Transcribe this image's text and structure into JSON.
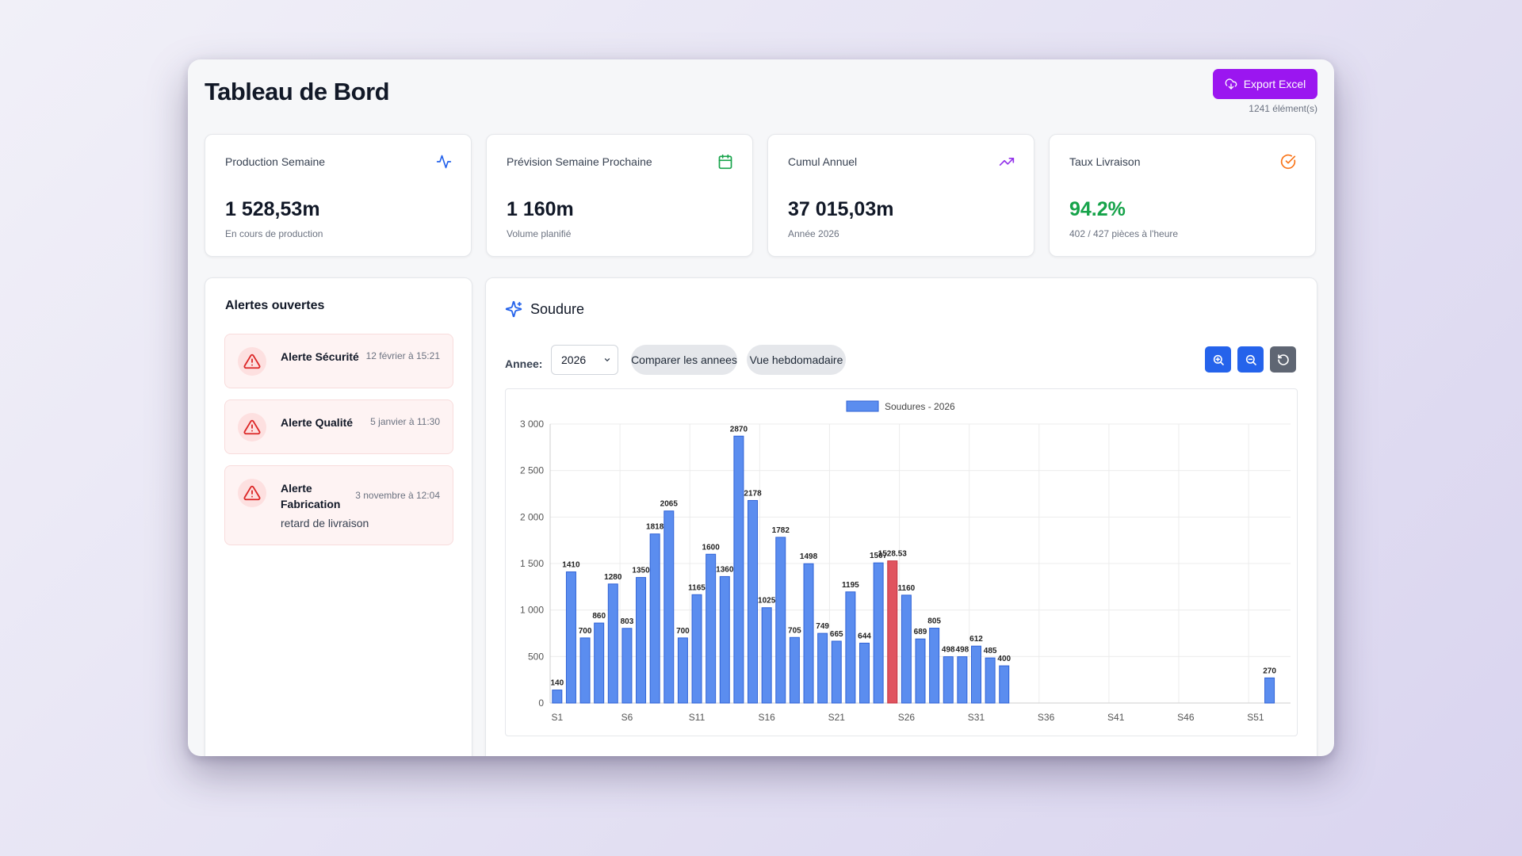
{
  "header": {
    "title": "Tableau de Bord",
    "export_label": "Export Excel",
    "count_label": "1241 élément(s)"
  },
  "stats": [
    {
      "title": "Production Semaine",
      "value": "1 528,53m",
      "sub": "En cours de production",
      "icon": "activity-icon",
      "icon_color": "#2563eb"
    },
    {
      "title": "Prévision Semaine Prochaine",
      "value": "1 160m",
      "sub": "Volume planifié",
      "icon": "calendar-icon",
      "icon_color": "#16a34a"
    },
    {
      "title": "Cumul Annuel",
      "value": "37 015,03m",
      "sub": "Année 2026",
      "icon": "trending-up-icon",
      "icon_color": "#9333ea"
    },
    {
      "title": "Taux Livraison",
      "value": "94.2%",
      "sub": "402 / 427 pièces à l'heure",
      "icon": "check-circle-icon",
      "icon_color": "#f97316",
      "value_color": "#16a34a"
    }
  ],
  "alerts": {
    "title": "Alertes ouvertes",
    "items": [
      {
        "name": "Alerte Sécurité",
        "time": "12 février à 15:21",
        "description": ""
      },
      {
        "name": "Alerte Qualité",
        "time": "5 janvier à 11:30",
        "description": ""
      },
      {
        "name": "Alerte Fabrication",
        "time": "3 novembre à 12:04",
        "description": "retard de livraison"
      }
    ]
  },
  "chart_panel": {
    "title": "Soudure",
    "year_label": "Annee:",
    "year_value": "2026",
    "compare_label": "Comparer les annees",
    "weekly_label": "Vue hebdomadaire",
    "zoom_in_icon": "zoom-in-icon",
    "zoom_out_icon": "zoom-out-icon",
    "reset_icon": "reset-icon"
  },
  "chart_data": {
    "type": "bar",
    "categories": [
      "S1",
      "S2",
      "S3",
      "S4",
      "S5",
      "S6",
      "S7",
      "S8",
      "S9",
      "S10",
      "S11",
      "S12",
      "S13",
      "S14",
      "S15",
      "S16",
      "S17",
      "S18",
      "S19",
      "S20",
      "S21",
      "S22",
      "S23",
      "S24",
      "S25",
      "S26",
      "S27",
      "S28",
      "S29",
      "S30",
      "S31",
      "S32",
      "S33",
      "S34",
      "S35",
      "S36",
      "S37",
      "S38",
      "S39",
      "S40",
      "S41",
      "S42",
      "S43",
      "S44",
      "S45",
      "S46",
      "S47",
      "S48",
      "S49",
      "S50",
      "S51",
      "S52",
      "S53"
    ],
    "tick_labels": [
      "S1",
      "S6",
      "S11",
      "S16",
      "S21",
      "S26",
      "S31",
      "S36",
      "S41",
      "S46",
      "S51"
    ],
    "series": [
      {
        "name": "Soudures - 2026",
        "color": "#5b8def",
        "highlight_color": "#e0535e",
        "highlight_category": "S25",
        "values": [
          140,
          1410,
          700,
          860,
          1280,
          803,
          1350,
          1818,
          2065,
          700,
          1165,
          1600,
          1360,
          2870,
          2178,
          1025,
          1782,
          705,
          1498,
          749,
          665,
          1195,
          644,
          1507,
          1528.53,
          1160,
          689,
          805,
          498,
          498,
          612,
          485,
          400,
          null,
          null,
          null,
          null,
          null,
          null,
          null,
          null,
          null,
          null,
          null,
          null,
          null,
          null,
          null,
          null,
          null,
          null,
          270,
          null
        ],
        "labels": [
          "140",
          "1410",
          "700",
          "860",
          "1280",
          "803",
          "1350",
          "1818",
          "2065",
          "700",
          "1165",
          "1600",
          "1360",
          "2870",
          "2178",
          "1025",
          "1782",
          "705",
          "1498",
          "749",
          "665",
          "1195",
          "644",
          "1507",
          "1528.53",
          "1160",
          "689",
          "805",
          "498",
          "498",
          "612",
          "485",
          "400",
          "",
          "",
          "",
          "",
          "",
          "",
          "",
          "",
          "",
          "",
          "",
          "",
          "",
          "",
          "",
          "",
          "",
          "",
          "270",
          ""
        ]
      }
    ],
    "yticks": [
      "0",
      "500",
      "1 000",
      "1 500",
      "2 000",
      "2 500",
      "3 000"
    ],
    "ylim": [
      0,
      3000
    ],
    "legend": "top-center",
    "grid": true
  }
}
